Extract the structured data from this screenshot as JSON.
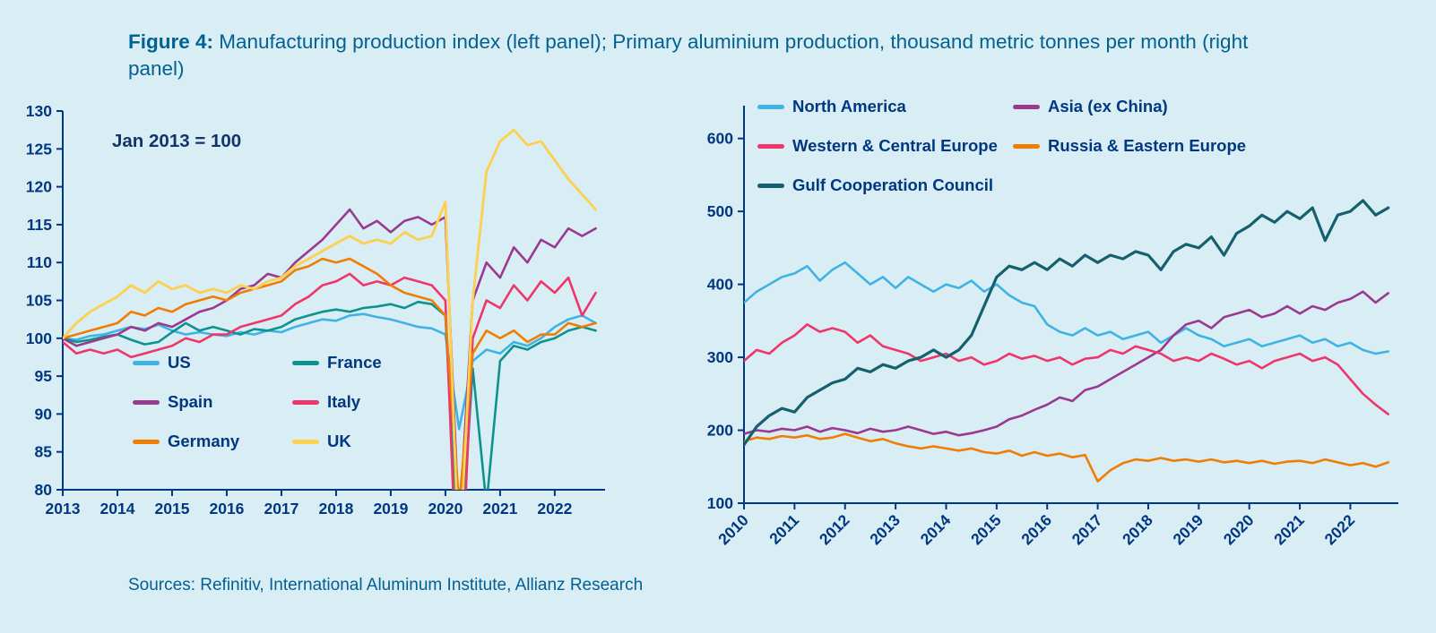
{
  "title": {
    "prefix": "Figure 4:",
    "rest": " Manufacturing production index (left panel); Primary aluminium production, thousand metric tonnes per month (right panel)"
  },
  "source": "Sources: Refinitiv, International Aluminum Institute, Allianz Research",
  "colors": {
    "axis": "#003781",
    "background": "#d9edf4",
    "title": "#006192"
  },
  "chart_data": [
    {
      "id": "manufacturing-index",
      "type": "line",
      "title": "Manufacturing production index",
      "annotation": "Jan 2013 = 100",
      "x_start": 2013,
      "x_step": 0.25,
      "xlim": [
        2013,
        2022.92
      ],
      "ylim": [
        80,
        130
      ],
      "y_ticks": [
        80,
        85,
        90,
        95,
        100,
        105,
        110,
        115,
        120,
        125,
        130
      ],
      "x_ticks": [
        2013,
        2014,
        2015,
        2016,
        2017,
        2018,
        2019,
        2020,
        2021,
        2022
      ],
      "grid": false,
      "legend_position": "inside-lower-left",
      "series": [
        {
          "name": "US",
          "color": "#3fb3e3",
          "stroke_width": 2.6,
          "values": [
            100,
            99.8,
            100.3,
            100.5,
            101,
            101.5,
            101.2,
            101.8,
            101,
            100.5,
            100.8,
            100.5,
            100.3,
            100.8,
            100.5,
            101,
            100.8,
            101.5,
            102,
            102.5,
            102.3,
            103,
            103.2,
            102.8,
            102.5,
            102,
            101.5,
            101.3,
            100.5,
            88,
            97,
            98.5,
            98,
            99.5,
            99,
            100,
            101.5,
            102.5,
            103,
            102
          ]
        },
        {
          "name": "France",
          "color": "#0f928d",
          "stroke_width": 2.6,
          "values": [
            100,
            99.5,
            99.8,
            100.2,
            100.5,
            99.8,
            99.2,
            99.5,
            100.8,
            102,
            101,
            101.5,
            101,
            100.5,
            101.2,
            101,
            101.5,
            102.5,
            103,
            103.5,
            103.8,
            103.5,
            104,
            104.2,
            104.5,
            104,
            104.8,
            104.5,
            103,
            68,
            96,
            78,
            97,
            99,
            98.5,
            99.5,
            100,
            101,
            101.5,
            101
          ]
        },
        {
          "name": "Spain",
          "color": "#9a3a8f",
          "stroke_width": 2.6,
          "values": [
            100,
            99,
            99.5,
            100,
            100.5,
            101.5,
            101,
            102,
            101.5,
            102.5,
            103.5,
            104,
            105,
            106.5,
            107,
            108.5,
            108,
            110,
            111.5,
            113,
            115,
            117,
            114.5,
            115.5,
            114,
            115.5,
            116,
            115,
            116,
            75,
            105,
            110,
            108,
            112,
            110,
            113,
            112,
            114.5,
            113.5,
            114.5
          ]
        },
        {
          "name": "Italy",
          "color": "#ef366b",
          "stroke_width": 2.6,
          "values": [
            99.5,
            98,
            98.5,
            98,
            98.5,
            97.5,
            98,
            98.5,
            99,
            100,
            99.5,
            100.5,
            100.5,
            101.5,
            102,
            102.5,
            103,
            104.5,
            105.5,
            107,
            107.5,
            108.5,
            107,
            107.5,
            107,
            108,
            107.5,
            107,
            105,
            60,
            100,
            105,
            104,
            107,
            105,
            107.5,
            106,
            108,
            103,
            106
          ]
        },
        {
          "name": "Germany",
          "color": "#f07d00",
          "stroke_width": 2.6,
          "values": [
            100,
            100.5,
            101,
            101.5,
            102,
            103.5,
            103,
            104,
            103.5,
            104.5,
            105,
            105.5,
            105,
            106,
            106.5,
            107,
            107.5,
            109,
            109.5,
            110.5,
            110,
            110.5,
            109.5,
            108.5,
            107,
            106,
            105.5,
            105,
            103,
            78,
            98,
            101,
            100,
            101,
            99.5,
            100.5,
            100.5,
            102,
            101.5,
            102
          ]
        },
        {
          "name": "UK",
          "color": "#fdd14f",
          "stroke_width": 2.8,
          "values": [
            100,
            102,
            103.5,
            104.5,
            105.5,
            107,
            106,
            107.5,
            106.5,
            107,
            106,
            106.5,
            106,
            107,
            106.5,
            107.5,
            108,
            109.5,
            110.5,
            111.5,
            112.5,
            113.5,
            112.5,
            113,
            112.5,
            114,
            113,
            113.5,
            118,
            70,
            105,
            122,
            126,
            127.5,
            125.5,
            126,
            123.5,
            121,
            119,
            117
          ]
        }
      ]
    },
    {
      "id": "aluminium-production",
      "type": "line",
      "title": "Primary aluminium production, thousand metric tonnes per month",
      "x_start": 2010,
      "x_step": 0.25,
      "xlim": [
        2010,
        2022.95
      ],
      "ylim": [
        100,
        645
      ],
      "y_ticks": [
        100,
        200,
        300,
        400,
        500,
        600
      ],
      "x_ticks": [
        2010,
        2011,
        2012,
        2013,
        2014,
        2015,
        2016,
        2017,
        2018,
        2019,
        2020,
        2021,
        2022
      ],
      "grid": false,
      "legend_position": "inside-top",
      "series": [
        {
          "name": "North America",
          "color": "#3fb3e3",
          "stroke_width": 2.6,
          "values": [
            375,
            390,
            400,
            410,
            415,
            425,
            405,
            420,
            430,
            415,
            400,
            410,
            395,
            410,
            400,
            390,
            400,
            395,
            405,
            390,
            400,
            385,
            375,
            370,
            345,
            335,
            330,
            340,
            330,
            335,
            325,
            330,
            335,
            320,
            330,
            340,
            330,
            325,
            315,
            320,
            325,
            315,
            320,
            325,
            330,
            320,
            325,
            315,
            320,
            310,
            305,
            308
          ]
        },
        {
          "name": "Asia (ex China)",
          "color": "#9a3a8f",
          "stroke_width": 2.6,
          "values": [
            195,
            200,
            198,
            202,
            200,
            205,
            198,
            203,
            200,
            196,
            202,
            198,
            200,
            205,
            200,
            195,
            198,
            193,
            196,
            200,
            205,
            215,
            220,
            228,
            235,
            245,
            240,
            255,
            260,
            270,
            280,
            290,
            300,
            310,
            330,
            345,
            350,
            340,
            355,
            360,
            365,
            355,
            360,
            370,
            360,
            370,
            365,
            375,
            380,
            390,
            375,
            388
          ]
        },
        {
          "name": "Western & Central Europe",
          "color": "#ef366b",
          "stroke_width": 2.6,
          "values": [
            295,
            310,
            305,
            320,
            330,
            345,
            335,
            340,
            335,
            320,
            330,
            315,
            310,
            305,
            295,
            300,
            305,
            295,
            300,
            290,
            295,
            305,
            298,
            302,
            295,
            300,
            290,
            298,
            300,
            310,
            305,
            315,
            310,
            305,
            295,
            300,
            295,
            305,
            298,
            290,
            295,
            285,
            295,
            300,
            305,
            295,
            300,
            290,
            270,
            250,
            235,
            222
          ]
        },
        {
          "name": "Russia & Eastern Europe",
          "color": "#f07d00",
          "stroke_width": 2.6,
          "values": [
            185,
            190,
            188,
            192,
            190,
            193,
            188,
            190,
            195,
            190,
            185,
            188,
            182,
            178,
            175,
            178,
            175,
            172,
            175,
            170,
            168,
            172,
            165,
            170,
            165,
            168,
            163,
            166,
            130,
            145,
            155,
            160,
            158,
            162,
            158,
            160,
            157,
            160,
            156,
            158,
            155,
            158,
            154,
            157,
            158,
            155,
            160,
            156,
            152,
            155,
            150,
            156
          ]
        },
        {
          "name": "Gulf Cooperation Council",
          "color": "#15606d",
          "stroke_width": 3.2,
          "values": [
            180,
            205,
            220,
            230,
            225,
            245,
            255,
            265,
            270,
            285,
            280,
            290,
            285,
            295,
            300,
            310,
            300,
            310,
            330,
            370,
            410,
            425,
            420,
            430,
            420,
            435,
            425,
            440,
            430,
            440,
            435,
            445,
            440,
            420,
            445,
            455,
            450,
            465,
            440,
            470,
            480,
            495,
            485,
            500,
            490,
            505,
            460,
            495,
            500,
            515,
            495,
            505
          ]
        }
      ]
    }
  ]
}
